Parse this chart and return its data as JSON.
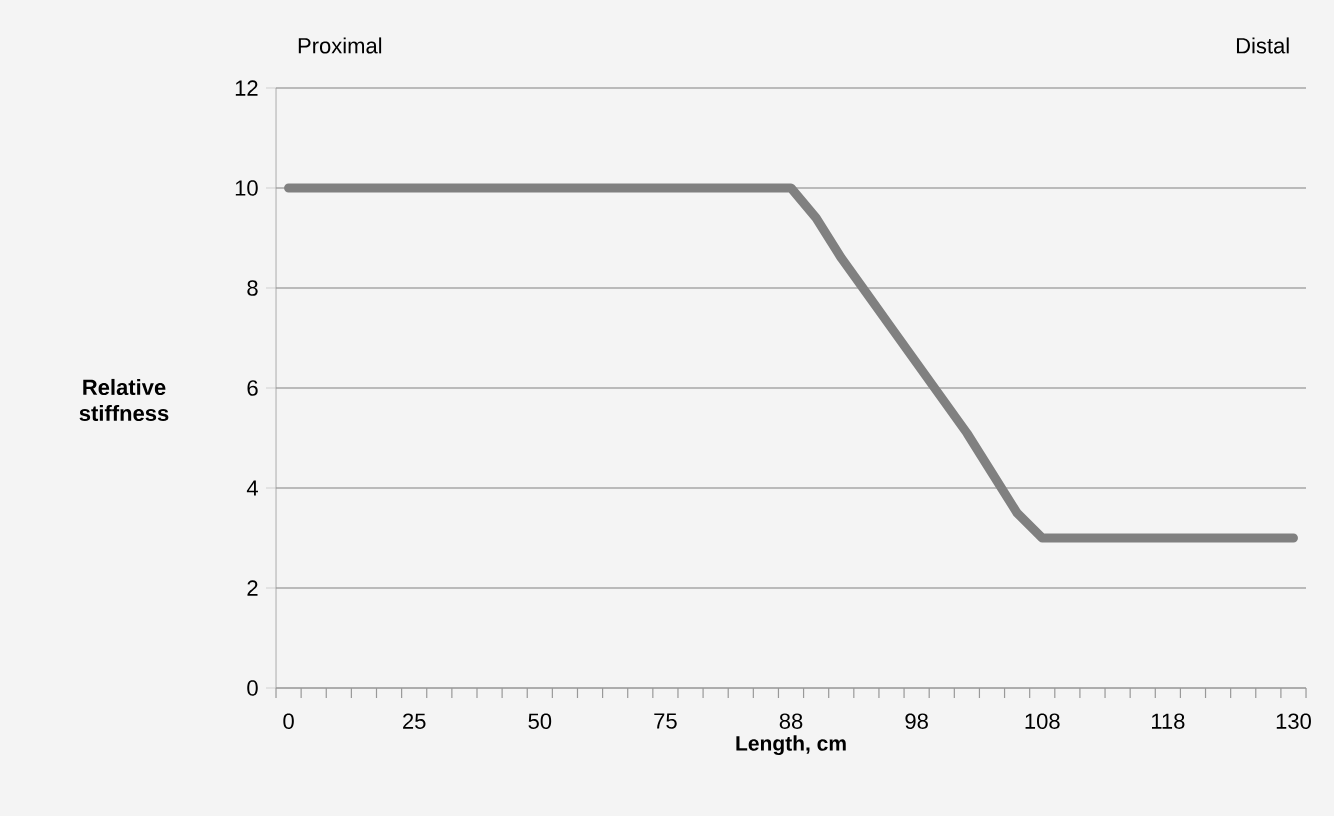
{
  "chart_data": {
    "type": "line",
    "xlabel": "Length, cm",
    "ylabel": "Relative stiffness",
    "annotations": [
      "Proximal",
      "Distal"
    ],
    "categories": [
      "0",
      null,
      null,
      null,
      null,
      "25",
      null,
      null,
      null,
      null,
      "50",
      null,
      null,
      null,
      null,
      "75",
      null,
      null,
      null,
      null,
      "88",
      null,
      null,
      null,
      null,
      "98",
      null,
      null,
      null,
      null,
      "108",
      null,
      null,
      null,
      null,
      "118",
      null,
      null,
      null,
      null,
      "130"
    ],
    "series": [
      {
        "color": "#808080",
        "values": [
          10,
          10,
          10,
          10,
          10,
          10,
          10,
          10,
          10,
          10,
          10,
          10,
          10,
          10,
          10,
          10,
          10,
          10,
          10,
          10,
          10,
          9.4,
          8.6,
          7.9,
          7.2,
          6.5,
          5.8,
          5.1,
          4.3,
          3.5,
          3,
          3,
          3,
          3,
          3,
          3,
          3,
          3,
          3,
          3,
          3
        ]
      }
    ],
    "ylim": [
      0,
      12
    ],
    "yticks": [
      0,
      2,
      4,
      6,
      8,
      10,
      12
    ],
    "grid": "y",
    "marker": "none",
    "line_style": "solid"
  }
}
